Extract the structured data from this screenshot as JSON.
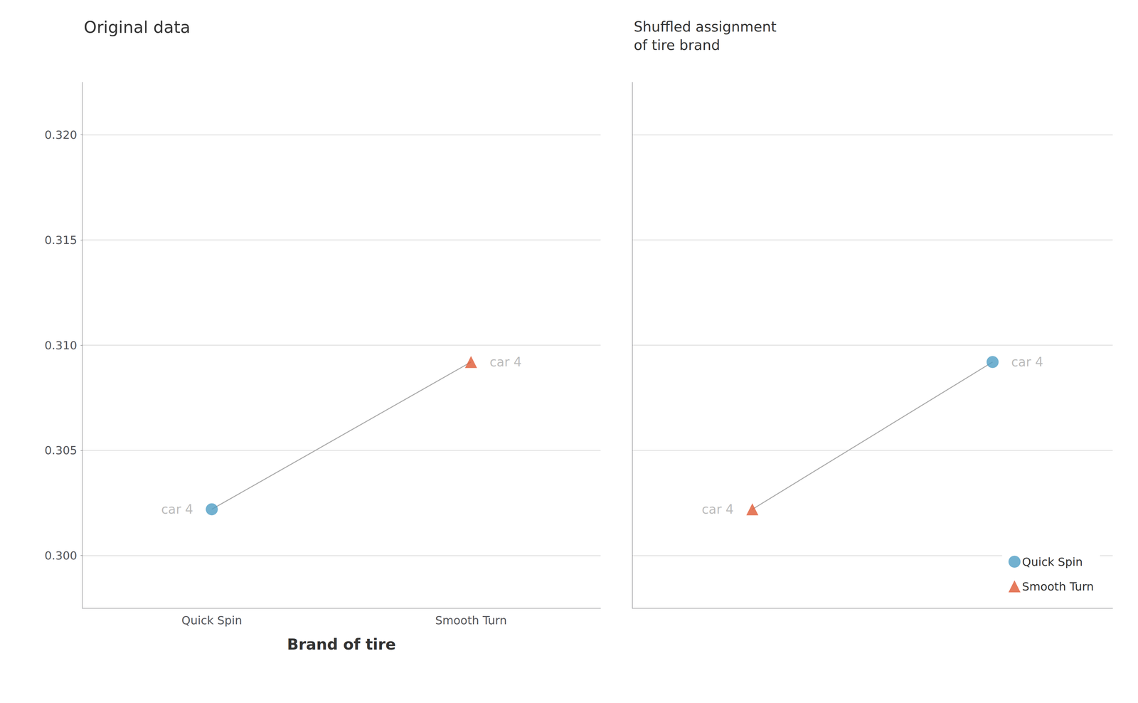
{
  "chart_data": [
    {
      "type": "line",
      "title": "Original data",
      "xlabel": "Brand of tire",
      "categories": [
        "Quick Spin",
        "Smooth Turn"
      ],
      "color": "#aaaaaa",
      "series": [
        {
          "color": "#4f9ec4",
          "marker": "circle",
          "values": [
            0.3022,
            null
          ]
        },
        {
          "color": "#e05a35",
          "marker": "triangle",
          "values": [
            null,
            0.3092
          ]
        }
      ],
      "annotations": [
        "car 4",
        "car 4"
      ],
      "ylim": [
        0.2975,
        0.3225
      ],
      "yticks": [
        {
          "value": 0.3,
          "label": "0.300"
        },
        {
          "value": 0.305,
          "label": "0.305"
        },
        {
          "value": 0.31,
          "label": "0.310"
        },
        {
          "value": 0.315,
          "label": "0.315"
        },
        {
          "value": 0.32,
          "label": "0.320"
        }
      ],
      "grid": true
    },
    {
      "type": "line",
      "title": "Shuffled assignment\nof tire brand",
      "categories": [
        null,
        null
      ],
      "color": "#aaaaaa",
      "series": [
        {
          "name": "Quick Spin",
          "color": "#4f9ec4",
          "marker": "circle",
          "values": [
            null,
            0.3092
          ]
        },
        {
          "name": "Smooth Turn",
          "color": "#e05a35",
          "marker": "triangle",
          "values": [
            0.3022,
            null
          ]
        }
      ],
      "annotations": [
        "car 4",
        "car 4"
      ],
      "ylim": [
        0.2975,
        0.3225
      ],
      "yticks": [
        0.3,
        0.305,
        0.31,
        0.315,
        0.32
      ],
      "grid": true,
      "tick_labels": false,
      "legend": "lower right"
    }
  ]
}
